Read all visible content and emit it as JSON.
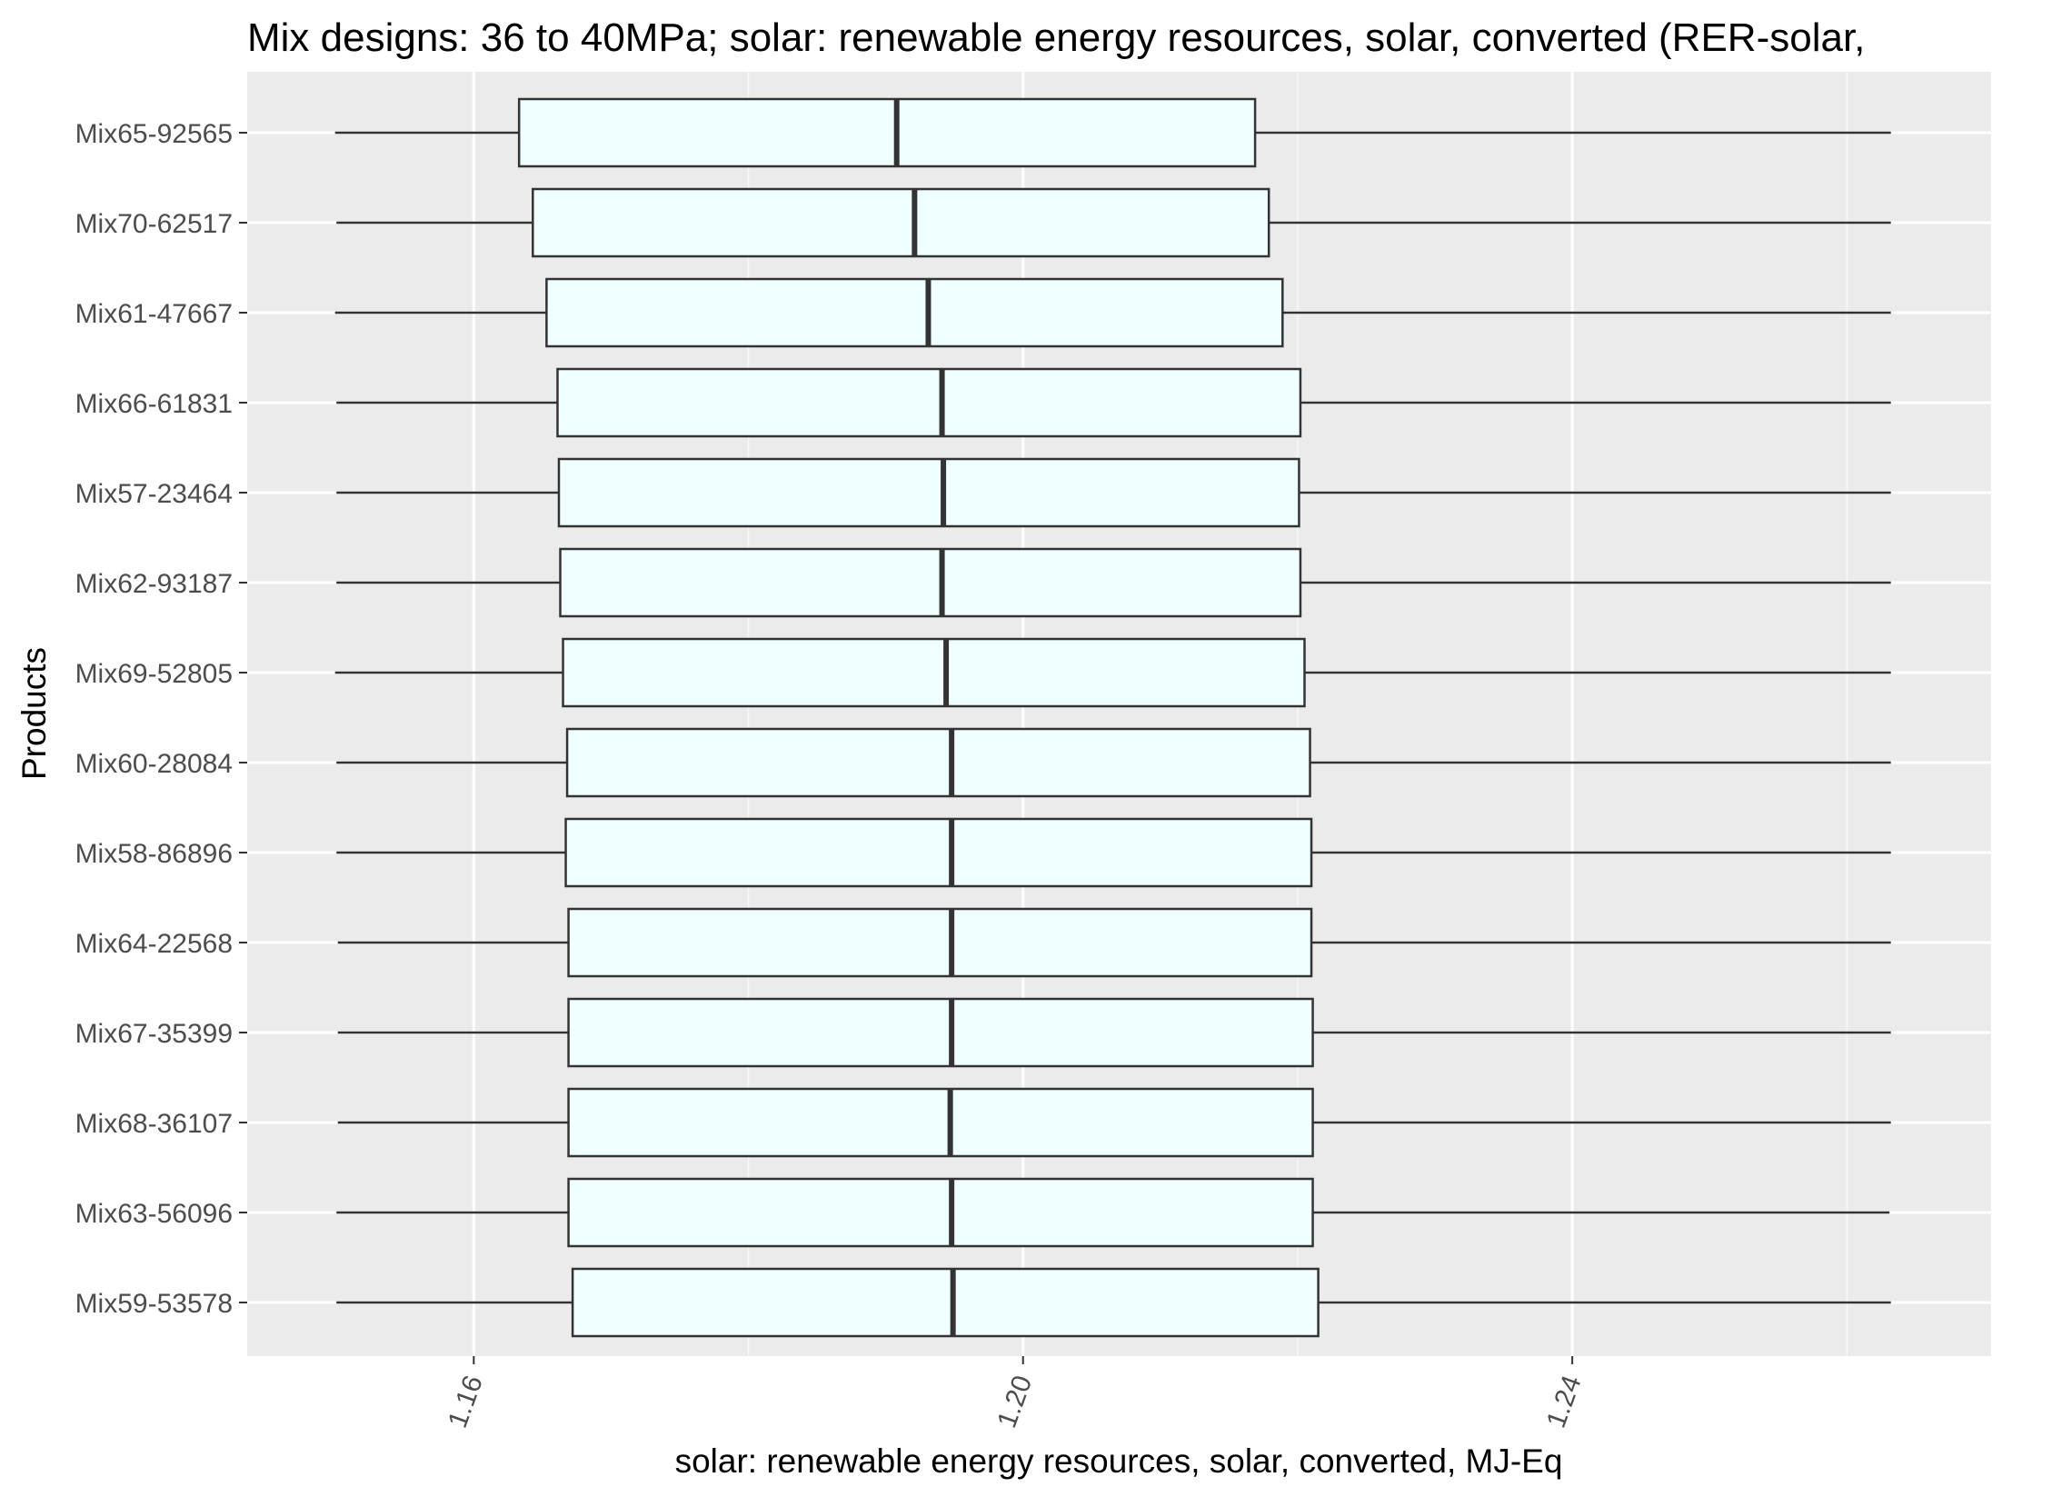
{
  "chart_data": {
    "type": "boxplot",
    "title": "Mix designs: 36 to 40MPa; solar: renewable energy resources, solar, converted (RER-solar,",
    "xlabel": "solar: renewable energy resources, solar, converted, MJ-Eq",
    "ylabel": "Products",
    "xlim": [
      1.1435,
      1.2705
    ],
    "xticks": [
      1.16,
      1.2,
      1.24
    ],
    "xtick_labels": [
      "1.16",
      "1.20",
      "1.24"
    ],
    "grid": true,
    "box_fill": "#F0FFFF",
    "panel_background": "#EBEBEB",
    "categories": [
      "Mix65-92565",
      "Mix70-62517",
      "Mix61-47667",
      "Mix66-61831",
      "Mix57-23464",
      "Mix62-93187",
      "Mix69-52805",
      "Mix60-28084",
      "Mix58-86896",
      "Mix64-22568",
      "Mix67-35399",
      "Mix68-36107",
      "Mix63-56096",
      "Mix59-53578"
    ],
    "boxes": [
      {
        "name": "Mix65-92565",
        "min": 1.1499,
        "q1": 1.1633,
        "median": 1.1908,
        "q3": 1.2169,
        "max": 1.2632
      },
      {
        "name": "Mix70-62517",
        "min": 1.15,
        "q1": 1.1643,
        "median": 1.1921,
        "q3": 1.2179,
        "max": 1.2632
      },
      {
        "name": "Mix61-47667",
        "min": 1.1499,
        "q1": 1.1653,
        "median": 1.1931,
        "q3": 1.2189,
        "max": 1.2632
      },
      {
        "name": "Mix66-61831",
        "min": 1.15,
        "q1": 1.1661,
        "median": 1.1941,
        "q3": 1.2202,
        "max": 1.2632
      },
      {
        "name": "Mix57-23464",
        "min": 1.15,
        "q1": 1.1662,
        "median": 1.1942,
        "q3": 1.2201,
        "max": 1.2632
      },
      {
        "name": "Mix62-93187",
        "min": 1.15,
        "q1": 1.1663,
        "median": 1.1941,
        "q3": 1.2202,
        "max": 1.2632
      },
      {
        "name": "Mix69-52805",
        "min": 1.1499,
        "q1": 1.1665,
        "median": 1.1944,
        "q3": 1.2205,
        "max": 1.2632
      },
      {
        "name": "Mix60-28084",
        "min": 1.15,
        "q1": 1.1668,
        "median": 1.1948,
        "q3": 1.2209,
        "max": 1.2632
      },
      {
        "name": "Mix58-86896",
        "min": 1.15,
        "q1": 1.1667,
        "median": 1.1948,
        "q3": 1.221,
        "max": 1.2632
      },
      {
        "name": "Mix64-22568",
        "min": 1.1501,
        "q1": 1.1669,
        "median": 1.1948,
        "q3": 1.221,
        "max": 1.2632
      },
      {
        "name": "Mix67-35399",
        "min": 1.1501,
        "q1": 1.1669,
        "median": 1.1948,
        "q3": 1.2211,
        "max": 1.2632
      },
      {
        "name": "Mix68-36107",
        "min": 1.1501,
        "q1": 1.1669,
        "median": 1.1947,
        "q3": 1.2211,
        "max": 1.2632
      },
      {
        "name": "Mix63-56096",
        "min": 1.15,
        "q1": 1.1669,
        "median": 1.1948,
        "q3": 1.2211,
        "max": 1.2631
      },
      {
        "name": "Mix59-53578",
        "min": 1.15,
        "q1": 1.1672,
        "median": 1.1949,
        "q3": 1.2215,
        "max": 1.2632
      }
    ]
  }
}
